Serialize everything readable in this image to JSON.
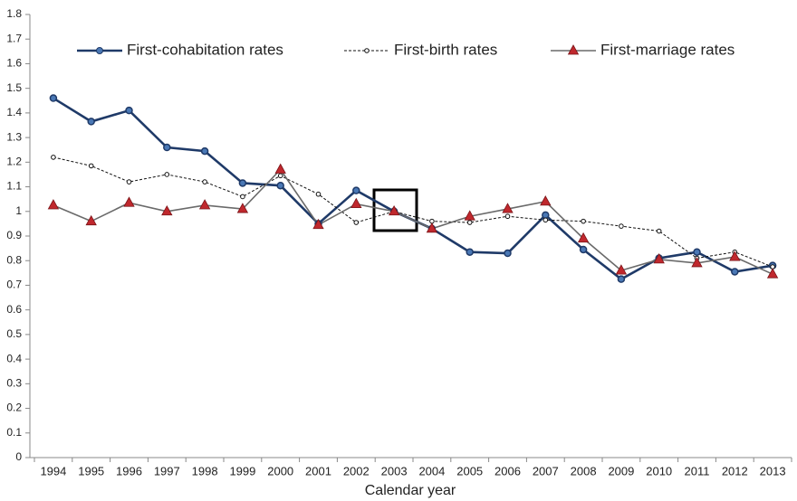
{
  "chart_data": {
    "type": "line",
    "x_label": "Calendar year",
    "categories": [
      "1994",
      "1995",
      "1996",
      "1997",
      "1998",
      "1999",
      "2000",
      "2001",
      "2002",
      "2003",
      "2004",
      "2005",
      "2006",
      "2007",
      "2008",
      "2009",
      "2010",
      "2011",
      "2012",
      "2013"
    ],
    "ylim": [
      0,
      1.8
    ],
    "yticks": [
      0,
      0.1,
      0.2,
      0.3,
      0.4,
      0.5,
      0.6,
      0.7,
      0.8,
      0.9,
      1,
      1.1,
      1.2,
      1.3,
      1.4,
      1.5,
      1.6,
      1.7,
      1.8
    ],
    "grid": false,
    "series": [
      {
        "name": "First-cohabitation rates",
        "color": "#1f3a68",
        "marker": "circle",
        "values": [
          1.46,
          1.365,
          1.41,
          1.26,
          1.245,
          1.115,
          1.105,
          0.95,
          1.085,
          1.0,
          0.93,
          0.835,
          0.83,
          0.985,
          0.845,
          0.725,
          0.81,
          0.835,
          0.755,
          0.78
        ]
      },
      {
        "name": "First-birth rates",
        "color": "#111111",
        "marker": "hollow",
        "values": [
          1.22,
          1.185,
          1.12,
          1.15,
          1.12,
          1.06,
          1.145,
          1.07,
          0.955,
          1.0,
          0.96,
          0.955,
          0.98,
          0.965,
          0.96,
          0.94,
          0.92,
          0.81,
          0.835,
          0.775
        ]
      },
      {
        "name": "First-marriage rates",
        "color": "#6a6a6a",
        "marker": "triangle",
        "values": [
          1.025,
          0.96,
          1.035,
          1.0,
          1.025,
          1.01,
          1.17,
          0.945,
          1.03,
          1.0,
          0.93,
          0.98,
          1.01,
          1.04,
          0.89,
          0.76,
          0.805,
          0.79,
          0.815,
          0.745
        ]
      }
    ]
  }
}
